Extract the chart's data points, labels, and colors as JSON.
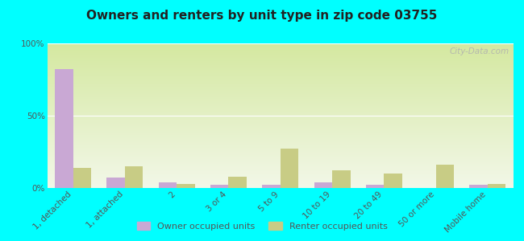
{
  "title": "Owners and renters by unit type in zip code 03755",
  "categories": [
    "1, detached",
    "1, attached",
    "2",
    "3 or 4",
    "5 to 9",
    "10 to 19",
    "20 to 49",
    "50 or more",
    "Mobile home"
  ],
  "owner_values": [
    82,
    7,
    4,
    2,
    2,
    4,
    2,
    0,
    2
  ],
  "renter_values": [
    14,
    15,
    3,
    8,
    27,
    12,
    10,
    16,
    3
  ],
  "owner_color": "#c9a8d4",
  "renter_color": "#c8cc85",
  "background_color": "#00ffff",
  "grad_top": "#d4e8a0",
  "grad_bottom": "#f2f7e8",
  "ylabel_ticks": [
    "0%",
    "50%",
    "100%"
  ],
  "ytick_vals": [
    0,
    50,
    100
  ],
  "ylim": [
    0,
    100
  ],
  "watermark": "City-Data.com",
  "legend_owner": "Owner occupied units",
  "legend_renter": "Renter occupied units",
  "bar_width": 0.35,
  "title_fontsize": 11,
  "tick_fontsize": 7.5,
  "legend_fontsize": 8
}
